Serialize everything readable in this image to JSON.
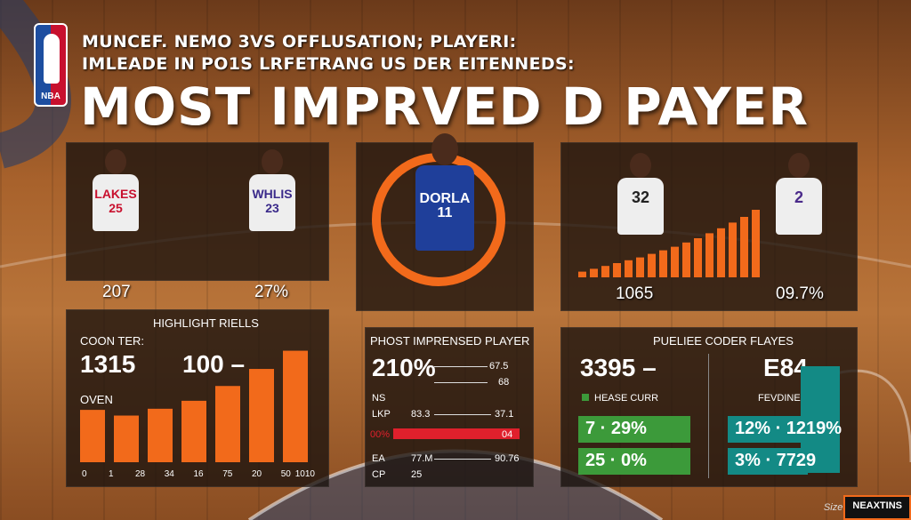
{
  "logo_text": "NBA",
  "header": {
    "subtitle_1": "MUNCEF. NEMO 3VS OFFLUSATION; PLAYERI:",
    "subtitle_2": "IMLEADE IN PO1S LRFETRANG US DER EITENNEDS:",
    "headline": "MOST IMPRVED D PAYER"
  },
  "colors": {
    "orange": "#f26a1b",
    "green": "#3c9a3a",
    "teal": "#138a85",
    "red": "#e0202c"
  },
  "top_left": {
    "players": [
      {
        "jersey": "LAKES 25",
        "stat": "207"
      },
      {
        "jersey": "WHLIS 23",
        "stat": "27%"
      }
    ]
  },
  "center": {
    "jersey": "DORLA 11"
  },
  "top_right": {
    "players": [
      {
        "jersey": "32",
        "stat": "1065"
      },
      {
        "jersey": "2",
        "stat": "09.7%"
      }
    ],
    "bars": [
      0.08,
      0.12,
      0.16,
      0.2,
      0.24,
      0.28,
      0.33,
      0.38,
      0.43,
      0.49,
      0.55,
      0.62,
      0.69,
      0.77,
      0.85,
      0.95
    ]
  },
  "highlight": {
    "title": "HIGHLIGHT RIELLS",
    "counter_label": "COON TER:",
    "counter_value": "1315",
    "mid_value": "100 –",
    "oven_label": "OVEN",
    "x_labels": [
      "0",
      "1",
      "28",
      "34",
      "16",
      "75",
      "20",
      "50",
      "1010"
    ],
    "bars": [
      0.46,
      0.41,
      0.47,
      0.54,
      0.67,
      0.82,
      0.98
    ]
  },
  "middle_panel": {
    "title": "PHOST IMPRENSED PLAYER",
    "big_value": "210%",
    "rows": [
      {
        "label": "",
        "value": "67.5"
      },
      {
        "label": "",
        "value": "68"
      },
      {
        "label": "NS",
        "value": ""
      },
      {
        "label": "LKP",
        "mid": "83.3",
        "value": "37.1"
      },
      {
        "label": "00%",
        "value": "04"
      },
      {
        "label": "EA",
        "mid": "77.M",
        "value": "90.76"
      },
      {
        "label": "CP",
        "mid": "25",
        "value": ""
      }
    ]
  },
  "right_panel": {
    "title": "PUELIEE CODER FLAYES",
    "left_value": "3395 –",
    "left_label": "HEASE CURR",
    "right_value": "E84 –",
    "right_label": "FEVDINES",
    "green_chips": [
      "7 · 29%",
      "25 · 0%"
    ],
    "teal_chips": [
      "12% · 1219%",
      "3% · 7729"
    ]
  },
  "footer": {
    "by": "Size by",
    "brand": "NEAXTINS"
  }
}
